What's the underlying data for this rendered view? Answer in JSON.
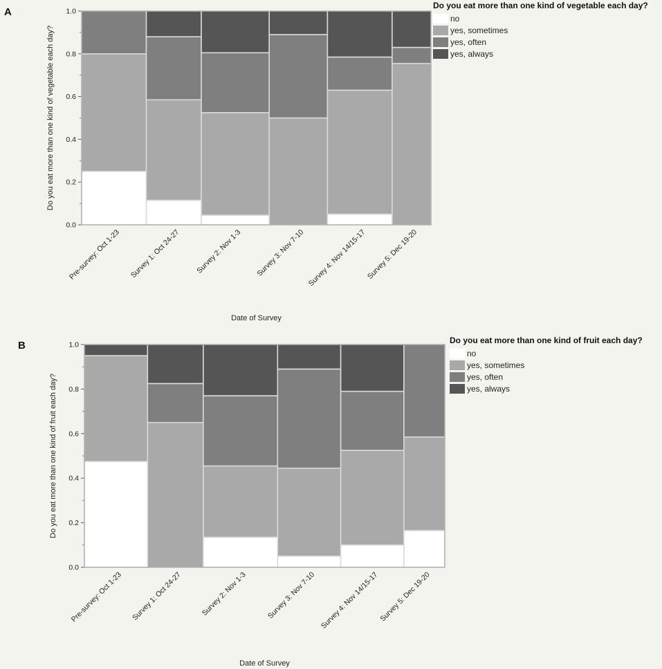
{
  "chart_data": [
    {
      "type": "bar",
      "stacked": true,
      "panel_label": "A",
      "title": "",
      "xlabel": "Date of Survey",
      "ylabel": "Do you eat more than one kind of vegetable each day?",
      "ylim": [
        0,
        1
      ],
      "yticks": [
        "0.0",
        "0.2",
        "0.4",
        "0.6",
        "0.8",
        "1.0"
      ],
      "legend_title": "Do you eat more than one kind of vegetable each day?",
      "legend_position": "top-right",
      "categories": [
        "Pre-survey: Oct 1-23",
        "Survey 1: Oct 24-27",
        "Survey 2: Nov 1-3",
        "Survey 3: Nov 7-10",
        "Survey 4: Nov 14/15-17",
        "Survey 5: Dec 19-20"
      ],
      "widths": [
        0.2,
        0.17,
        0.21,
        0.18,
        0.2,
        0.12
      ],
      "series": [
        {
          "name": "no",
          "color": "#ffffff",
          "values": [
            0.25,
            0.115,
            0.045,
            0.0,
            0.05,
            0.0
          ]
        },
        {
          "name": "yes, sometimes",
          "color": "#a9a9a9",
          "values": [
            0.55,
            0.47,
            0.48,
            0.5,
            0.58,
            0.755
          ]
        },
        {
          "name": "yes, often",
          "color": "#7f7f7f",
          "values": [
            0.2,
            0.295,
            0.28,
            0.39,
            0.155,
            0.075
          ]
        },
        {
          "name": "yes, always",
          "color": "#555555",
          "values": [
            0.0,
            0.12,
            0.195,
            0.11,
            0.215,
            0.17
          ]
        }
      ]
    },
    {
      "type": "bar",
      "stacked": true,
      "panel_label": "B",
      "title": "",
      "xlabel": "Date of Survey",
      "ylabel": "Do you eat more than one kind of fruit each day?",
      "ylim": [
        0,
        1
      ],
      "yticks": [
        "0.0",
        "0.2",
        "0.4",
        "0.6",
        "0.8",
        "1.0"
      ],
      "legend_title": "Do you eat more than one kind of fruit each day?",
      "legend_position": "top-right",
      "categories": [
        "Pre-survey: Oct 1-23",
        "Survey 1: Oct 24-27",
        "Survey 2: Nov 1-3",
        "Survey 3: Nov 7-10",
        "Survey 4: Nov 14/15-17",
        "Survey 5: Dec 19-20"
      ],
      "widths": [
        0.17,
        0.15,
        0.2,
        0.17,
        0.17,
        0.11
      ],
      "series": [
        {
          "name": "no",
          "color": "#ffffff",
          "values": [
            0.475,
            0.0,
            0.135,
            0.05,
            0.1,
            0.165
          ]
        },
        {
          "name": "yes, sometimes",
          "color": "#a9a9a9",
          "values": [
            0.475,
            0.65,
            0.32,
            0.395,
            0.425,
            0.42
          ]
        },
        {
          "name": "yes, often",
          "color": "#7f7f7f",
          "values": [
            0.0,
            0.175,
            0.315,
            0.445,
            0.265,
            0.415
          ]
        },
        {
          "name": "yes, always",
          "color": "#555555",
          "values": [
            0.05,
            0.175,
            0.23,
            0.11,
            0.21,
            0.0
          ]
        }
      ]
    }
  ]
}
